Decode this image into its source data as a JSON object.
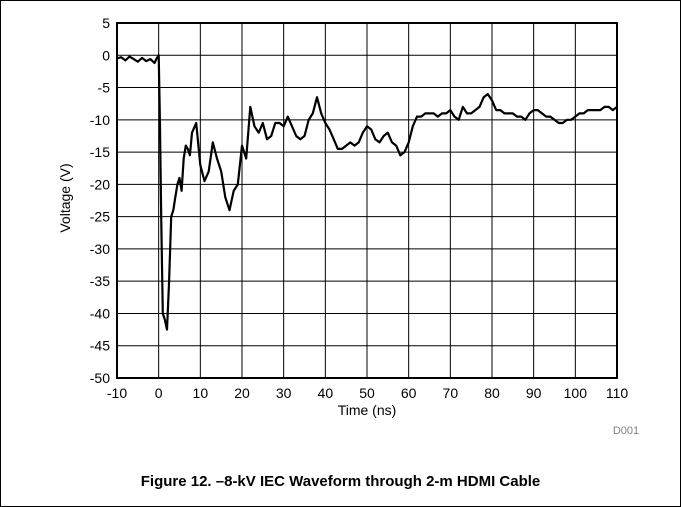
{
  "caption": "Figure 12. –8-kV IEC Waveform through 2-m HDMI Cable",
  "chart_data": {
    "type": "line",
    "title": "",
    "xlabel": "Time (ns)",
    "ylabel": "Voltage (V)",
    "xlim": [
      -10,
      110
    ],
    "ylim": [
      -50,
      5
    ],
    "xticks": [
      -10,
      0,
      10,
      20,
      30,
      40,
      50,
      60,
      70,
      80,
      90,
      100,
      110
    ],
    "yticks": [
      5,
      0,
      -5,
      -10,
      -15,
      -20,
      -25,
      -30,
      -35,
      -40,
      -45,
      -50
    ],
    "grid": true,
    "figure_id": "D001",
    "series": [
      {
        "x": [
          -10,
          -9,
          -8,
          -7,
          -6,
          -5,
          -4,
          -3,
          -2,
          -1,
          -0.5,
          0,
          0.3,
          0.6,
          1,
          1.5,
          2,
          2.5,
          3,
          3.5,
          4,
          4.5,
          5,
          5.5,
          6,
          6.5,
          7,
          7.5,
          8,
          9,
          10,
          11,
          12,
          13,
          14,
          15,
          16,
          17,
          18,
          19,
          20,
          21,
          22,
          23,
          24,
          25,
          26,
          27,
          28,
          29,
          30,
          31,
          32,
          33,
          34,
          35,
          36,
          37,
          38,
          39,
          40,
          41,
          42,
          43,
          44,
          45,
          46,
          47,
          48,
          49,
          50,
          51,
          52,
          53,
          54,
          55,
          56,
          57,
          58,
          59,
          60,
          61,
          62,
          63,
          64,
          65,
          66,
          67,
          68,
          69,
          70,
          71,
          72,
          73,
          74,
          75,
          76,
          77,
          78,
          79,
          80,
          81,
          82,
          83,
          84,
          85,
          86,
          87,
          88,
          89,
          90,
          91,
          92,
          93,
          94,
          95,
          96,
          97,
          98,
          99,
          100,
          101,
          102,
          103,
          104,
          105,
          106,
          107,
          108,
          109,
          110
        ],
        "values": [
          -0.5,
          -0.3,
          -0.8,
          -0.2,
          -0.6,
          -1.0,
          -0.4,
          -0.9,
          -0.6,
          -1.2,
          -0.5,
          0.0,
          -10,
          -25,
          -40,
          -41,
          -42.5,
          -35,
          -25,
          -24,
          -22,
          -20,
          -19,
          -21,
          -16,
          -14,
          -14.5,
          -15.5,
          -12,
          -10.5,
          -17,
          -19.5,
          -18,
          -13.5,
          -16,
          -18,
          -22,
          -24,
          -21,
          -20,
          -14,
          -16,
          -8,
          -11,
          -12,
          -10.5,
          -13,
          -12.5,
          -10.5,
          -10.5,
          -11,
          -9.5,
          -11,
          -12.5,
          -13,
          -12.5,
          -10,
          -9,
          -6.5,
          -9,
          -10.5,
          -11.5,
          -13,
          -14.5,
          -14.5,
          -14,
          -13.5,
          -14,
          -13.5,
          -12,
          -11,
          -11.5,
          -13,
          -13.5,
          -12.5,
          -12,
          -13.5,
          -14,
          -15.5,
          -15,
          -13.5,
          -11,
          -9.5,
          -9.5,
          -9,
          -9,
          -9,
          -9.5,
          -9,
          -9,
          -8.5,
          -9.5,
          -10,
          -8,
          -9,
          -9,
          -8.5,
          -8,
          -6.5,
          -6,
          -7,
          -8.5,
          -8.5,
          -9,
          -9,
          -9,
          -9.5,
          -9.5,
          -10,
          -9,
          -8.5,
          -8.5,
          -9,
          -9.5,
          -9.5,
          -10,
          -10.5,
          -10.5,
          -10,
          -10,
          -9.5,
          -9,
          -9,
          -8.5,
          -8.5,
          -8.5,
          -8.5,
          -8,
          -8,
          -8.5,
          -8
        ]
      }
    ]
  }
}
